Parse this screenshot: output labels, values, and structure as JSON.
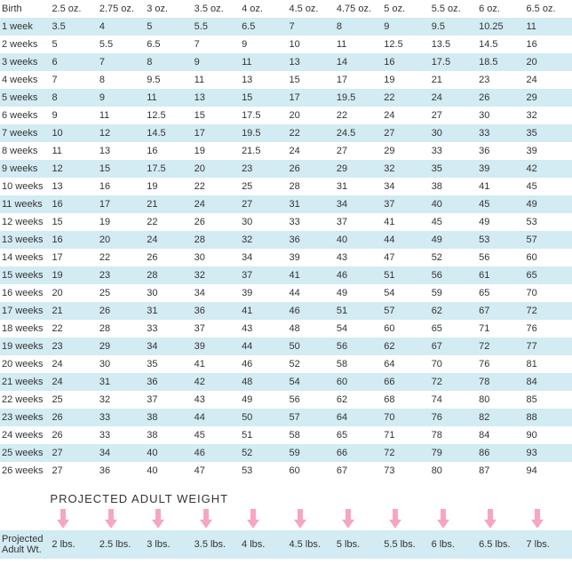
{
  "colors": {
    "stripe": "#d3ebf2",
    "arrow_fill": "#f7a6c1",
    "text": "#333333",
    "background": "#ffffff"
  },
  "header": {
    "age_label": "Birth",
    "weights": [
      "2.5 oz.",
      "2.75 oz.",
      "3 oz.",
      "3.5 oz.",
      "4 oz.",
      "4.5 oz.",
      "4.75 oz.",
      "5 oz.",
      "5.5 oz.",
      "6 oz.",
      "6.5 oz."
    ]
  },
  "rows": [
    {
      "age": "1 week",
      "vals": [
        "3.5",
        "4",
        "5",
        "5.5",
        "6.5",
        "7",
        "8",
        "9",
        "9.5",
        "10.25",
        "11"
      ]
    },
    {
      "age": "2 weeks",
      "vals": [
        "5",
        "5.5",
        "6.5",
        "7",
        "9",
        "10",
        "11",
        "12.5",
        "13.5",
        "14.5",
        "16"
      ]
    },
    {
      "age": "3 weeks",
      "vals": [
        "6",
        "7",
        "8",
        "9",
        "11",
        "13",
        "14",
        "16",
        "17.5",
        "18.5",
        "20"
      ]
    },
    {
      "age": "4 weeks",
      "vals": [
        "7",
        "8",
        "9.5",
        "11",
        "13",
        "15",
        "17",
        "19",
        "21",
        "23",
        "24"
      ]
    },
    {
      "age": "5 weeks",
      "vals": [
        "8",
        "9",
        "11",
        "13",
        "15",
        "17",
        "19.5",
        "22",
        "24",
        "26",
        "29"
      ]
    },
    {
      "age": "6 weeks",
      "vals": [
        "9",
        "11",
        "12.5",
        "15",
        "17.5",
        "20",
        "22",
        "24",
        "27",
        "30",
        "32"
      ]
    },
    {
      "age": "7 weeks",
      "vals": [
        "10",
        "12",
        "14.5",
        "17",
        "19.5",
        "22",
        "24.5",
        "27",
        "30",
        "33",
        "35"
      ]
    },
    {
      "age": "8 weeks",
      "vals": [
        "11",
        "13",
        "16",
        "19",
        "21.5",
        "24",
        "27",
        "29",
        "33",
        "36",
        "39"
      ]
    },
    {
      "age": "9 weeks",
      "vals": [
        "12",
        "15",
        "17.5",
        "20",
        "23",
        "26",
        "29",
        "32",
        "35",
        "39",
        "42"
      ]
    },
    {
      "age": "10 weeks",
      "vals": [
        "13",
        "16",
        "19",
        "22",
        "25",
        "28",
        "31",
        "34",
        "38",
        "41",
        "45"
      ]
    },
    {
      "age": "11 weeks",
      "vals": [
        "16",
        "17",
        "21",
        "24",
        "27",
        "31",
        "34",
        "37",
        "40",
        "45",
        "49"
      ]
    },
    {
      "age": "12 weeks",
      "vals": [
        "15",
        "19",
        "22",
        "26",
        "30",
        "33",
        "37",
        "41",
        "45",
        "49",
        "53"
      ]
    },
    {
      "age": "13 weeks",
      "vals": [
        "16",
        "20",
        "24",
        "28",
        "32",
        "36",
        "40",
        "44",
        "49",
        "53",
        "57"
      ]
    },
    {
      "age": "14 weeks",
      "vals": [
        "17",
        "22",
        "26",
        "30",
        "34",
        "39",
        "43",
        "47",
        "52",
        "56",
        "60"
      ]
    },
    {
      "age": "15 weeks",
      "vals": [
        "19",
        "23",
        "28",
        "32",
        "37",
        "41",
        "46",
        "51",
        "56",
        "61",
        "65"
      ]
    },
    {
      "age": "16 weeks",
      "vals": [
        "20",
        "25",
        "30",
        "34",
        "39",
        "44",
        "49",
        "54",
        "59",
        "65",
        "70"
      ]
    },
    {
      "age": "17 weeks",
      "vals": [
        "21",
        "26",
        "31",
        "36",
        "41",
        "46",
        "51",
        "57",
        "62",
        "67",
        "72"
      ]
    },
    {
      "age": "18 weeks",
      "vals": [
        "22",
        "28",
        "33",
        "37",
        "43",
        "48",
        "54",
        "60",
        "65",
        "71",
        "76"
      ]
    },
    {
      "age": "19 weeks",
      "vals": [
        "23",
        "29",
        "34",
        "39",
        "44",
        "50",
        "56",
        "62",
        "67",
        "72",
        "77"
      ]
    },
    {
      "age": "20 weeks",
      "vals": [
        "24",
        "30",
        "35",
        "41",
        "46",
        "52",
        "58",
        "64",
        "70",
        "76",
        "81"
      ]
    },
    {
      "age": "21 weeks",
      "vals": [
        "24",
        "31",
        "36",
        "42",
        "48",
        "54",
        "60",
        "66",
        "72",
        "78",
        "84"
      ]
    },
    {
      "age": "22 weeks",
      "vals": [
        "25",
        "32",
        "37",
        "43",
        "49",
        "56",
        "62",
        "68",
        "74",
        "80",
        "85"
      ]
    },
    {
      "age": "23 weeks",
      "vals": [
        "26",
        "33",
        "38",
        "44",
        "50",
        "57",
        "64",
        "70",
        "76",
        "82",
        "88"
      ]
    },
    {
      "age": "24 weeks",
      "vals": [
        "26",
        "33",
        "38",
        "45",
        "51",
        "58",
        "65",
        "71",
        "78",
        "84",
        "90"
      ]
    },
    {
      "age": "25 weeks",
      "vals": [
        "27",
        "34",
        "40",
        "46",
        "52",
        "59",
        "66",
        "72",
        "79",
        "86",
        "93"
      ]
    },
    {
      "age": "26 weeks",
      "vals": [
        "27",
        "36",
        "40",
        "47",
        "53",
        "60",
        "67",
        "73",
        "80",
        "87",
        "94"
      ]
    }
  ],
  "projected": {
    "banner": "PROJECTED ADULT WEIGHT",
    "label": "Projected Adult Wt.",
    "values": [
      "2 lbs.",
      "2.5 lbs.",
      "3 lbs.",
      "3.5 lbs.",
      "4 lbs.",
      "4.5 lbs.",
      "5 lbs.",
      "5.5 lbs.",
      "6 lbs.",
      "6.5 lbs.",
      "7 lbs."
    ]
  }
}
